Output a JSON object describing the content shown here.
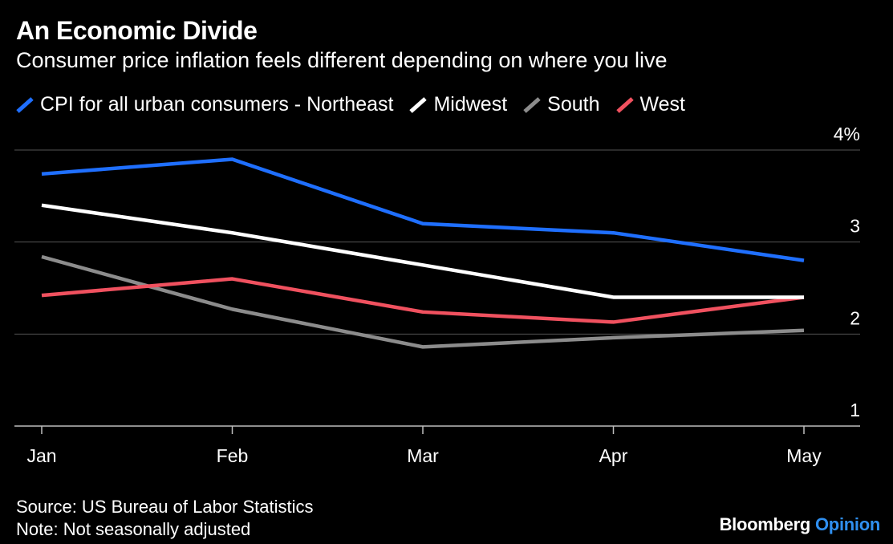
{
  "header": {
    "title": "An Economic Divide",
    "subtitle": "Consumer price inflation feels different depending on where you live"
  },
  "footer": {
    "source": "Source: US Bureau of Labor Statistics",
    "note": "Note: Not seasonally adjusted"
  },
  "brand": {
    "name": "Bloomberg",
    "product": "Opinion"
  },
  "chart_data": {
    "type": "line",
    "categories": [
      "Jan",
      "Feb",
      "Mar",
      "Apr",
      "May"
    ],
    "ylim": [
      1,
      4
    ],
    "yticks": [
      {
        "value": 4,
        "label": "4%"
      },
      {
        "value": 3,
        "label": "3"
      },
      {
        "value": 2,
        "label": "2"
      },
      {
        "value": 1,
        "label": "1"
      }
    ],
    "grid": true,
    "legend": "top-left",
    "series": [
      {
        "name": "CPI for all urban consumers - Northeast",
        "color": "#1f6fff",
        "values": [
          3.74,
          3.9,
          3.2,
          3.1,
          2.8
        ]
      },
      {
        "name": "Midwest",
        "color": "#ffffff",
        "values": [
          3.4,
          3.1,
          2.75,
          2.4,
          2.4
        ]
      },
      {
        "name": "South",
        "color": "#8c8c8c",
        "values": [
          2.84,
          2.27,
          1.86,
          1.96,
          2.04
        ]
      },
      {
        "name": "West",
        "color": "#f0515f",
        "values": [
          2.42,
          2.6,
          2.24,
          2.13,
          2.4
        ]
      }
    ]
  }
}
